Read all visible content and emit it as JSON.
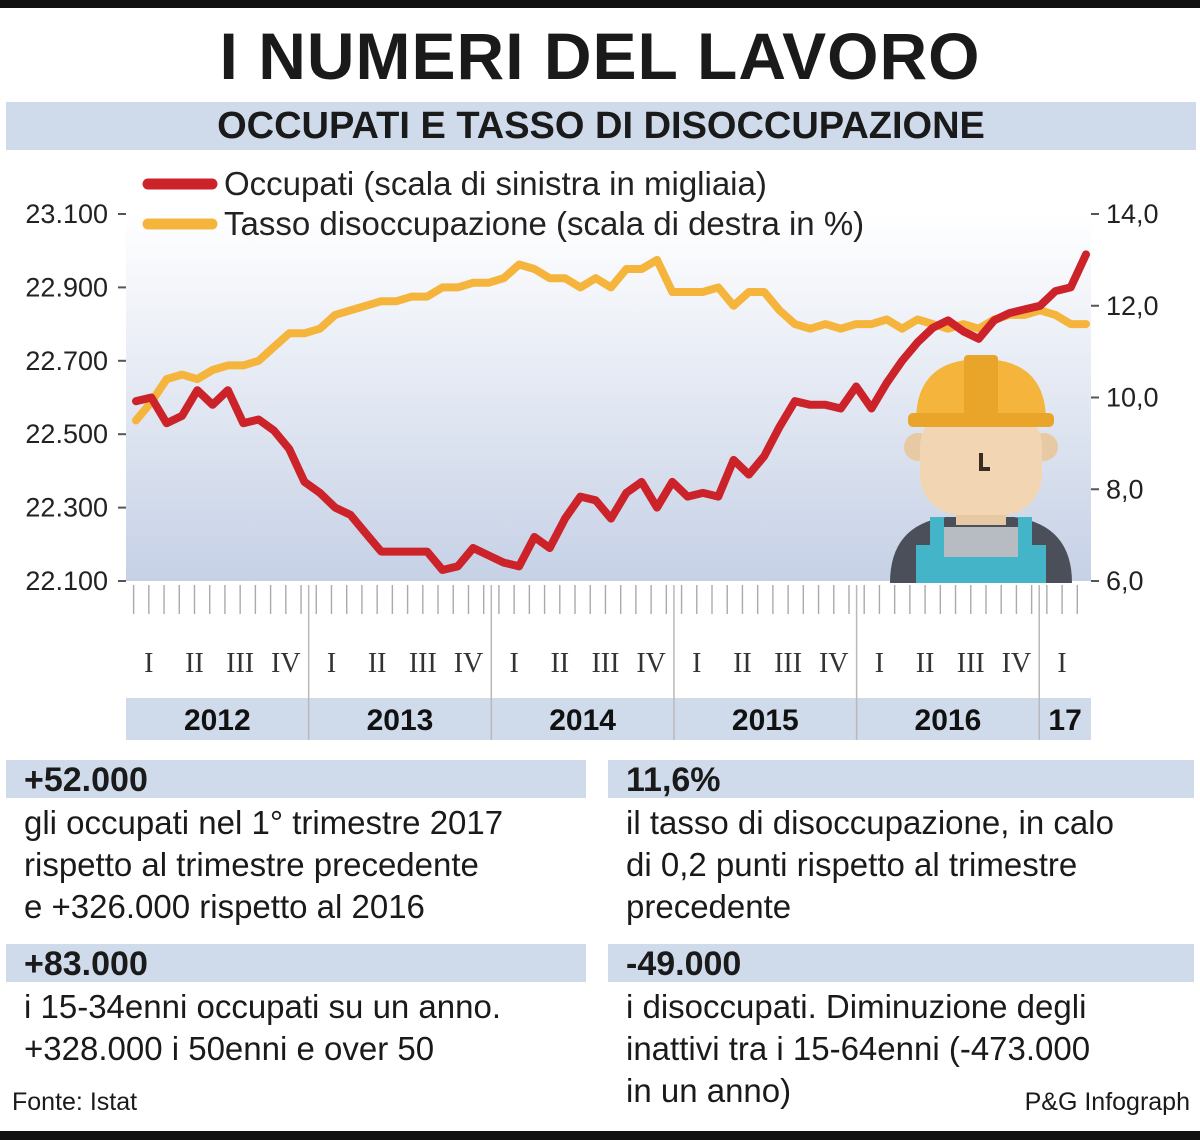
{
  "header": {
    "title": "I NUMERI DEL LAVORO",
    "subtitle": "OCCUPATI E TASSO DI DISOCCUPAZIONE"
  },
  "chart_data": {
    "type": "line",
    "legend": [
      {
        "label": "Occupati (scala di sinistra in migliaia)",
        "color": "#cc2229"
      },
      {
        "label": "Tasso disoccupazione (scala di destra in %)",
        "color": "#f5b53c"
      }
    ],
    "legend_placement": "top-left",
    "y_left": {
      "min": 22100,
      "max": 23100,
      "ticks": [
        "23.100",
        "22.900",
        "22.700",
        "22.500",
        "22.300",
        "22.100"
      ],
      "tick_values": [
        23100,
        22900,
        22700,
        22500,
        22300,
        22100
      ]
    },
    "y_right": {
      "min": 6.0,
      "max": 14.0,
      "ticks": [
        "14,0",
        "12,0",
        "10,0",
        "8,0",
        "6,0"
      ],
      "tick_values": [
        14,
        12,
        10,
        8,
        6
      ]
    },
    "x_months": [
      "2012-01",
      "2012-02",
      "2012-03",
      "2012-04",
      "2012-05",
      "2012-06",
      "2012-07",
      "2012-08",
      "2012-09",
      "2012-10",
      "2012-11",
      "2012-12",
      "2013-01",
      "2013-02",
      "2013-03",
      "2013-04",
      "2013-05",
      "2013-06",
      "2013-07",
      "2013-08",
      "2013-09",
      "2013-10",
      "2013-11",
      "2013-12",
      "2014-01",
      "2014-02",
      "2014-03",
      "2014-04",
      "2014-05",
      "2014-06",
      "2014-07",
      "2014-08",
      "2014-09",
      "2014-10",
      "2014-11",
      "2014-12",
      "2015-01",
      "2015-02",
      "2015-03",
      "2015-04",
      "2015-05",
      "2015-06",
      "2015-07",
      "2015-08",
      "2015-09",
      "2015-10",
      "2015-11",
      "2015-12",
      "2016-01",
      "2016-02",
      "2016-03",
      "2016-04",
      "2016-05",
      "2016-06",
      "2016-07",
      "2016-08",
      "2016-09",
      "2016-10",
      "2016-11",
      "2016-12",
      "2017-01",
      "2017-02",
      "2017-03"
    ],
    "series": [
      {
        "name": "Occupati",
        "axis": "left",
        "color": "#cc2229",
        "values": [
          22590,
          22600,
          22530,
          22550,
          22620,
          22580,
          22620,
          22530,
          22540,
          22510,
          22460,
          22370,
          22340,
          22300,
          22280,
          22230,
          22180,
          22180,
          22180,
          22180,
          22130,
          22140,
          22190,
          22170,
          22150,
          22140,
          22220,
          22190,
          22270,
          22330,
          22320,
          22270,
          22340,
          22370,
          22300,
          22370,
          22330,
          22340,
          22330,
          22430,
          22390,
          22440,
          22520,
          22590,
          22580,
          22580,
          22570,
          22630,
          22570,
          22640,
          22700,
          22750,
          22790,
          22810,
          22780,
          22760,
          22810,
          22830,
          22840,
          22850,
          22890,
          22900,
          22990
        ]
      },
      {
        "name": "Tasso disoccupazione",
        "axis": "right",
        "color": "#f5b53c",
        "values": [
          9.5,
          9.9,
          10.4,
          10.5,
          10.4,
          10.6,
          10.7,
          10.7,
          10.8,
          11.1,
          11.4,
          11.4,
          11.5,
          11.8,
          11.9,
          12.0,
          12.1,
          12.1,
          12.2,
          12.2,
          12.4,
          12.4,
          12.5,
          12.5,
          12.6,
          12.9,
          12.8,
          12.6,
          12.6,
          12.4,
          12.6,
          12.4,
          12.8,
          12.8,
          13.0,
          12.3,
          12.3,
          12.3,
          12.4,
          12.0,
          12.3,
          12.3,
          11.9,
          11.6,
          11.5,
          11.6,
          11.5,
          11.6,
          11.6,
          11.7,
          11.5,
          11.7,
          11.6,
          11.5,
          11.6,
          11.5,
          11.7,
          11.8,
          11.8,
          11.9,
          11.8,
          11.6,
          11.6
        ]
      }
    ],
    "quarter_labels": [
      "I",
      "II",
      "III",
      "IV"
    ],
    "years": [
      "2012",
      "2013",
      "2014",
      "2015",
      "2016",
      "17"
    ],
    "grid": false
  },
  "boxes": [
    {
      "value": "+52.000",
      "lines": [
        "gli occupati nel 1° trimestre 2017",
        "rispetto al trimestre precedente",
        "e +326.000 rispetto al 2016"
      ]
    },
    {
      "value": "11,6%",
      "lines": [
        "il tasso di disoccupazione, in calo",
        "di 0,2 punti rispetto al trimestre",
        "precedente"
      ]
    },
    {
      "value": "+83.000",
      "lines": [
        "i 15-34enni occupati su un anno.",
        "+328.000 i 50enni e over 50"
      ]
    },
    {
      "value": "-49.000",
      "lines": [
        "i disoccupati. Diminuzione degli",
        "inattivi tra i 15-64enni (-473.000",
        "in un anno)"
      ]
    }
  ],
  "footer": {
    "source": "Fonte: Istat",
    "credit": "P&G Infograph"
  },
  "icons": {
    "worker": "worker-hardhat-icon"
  }
}
